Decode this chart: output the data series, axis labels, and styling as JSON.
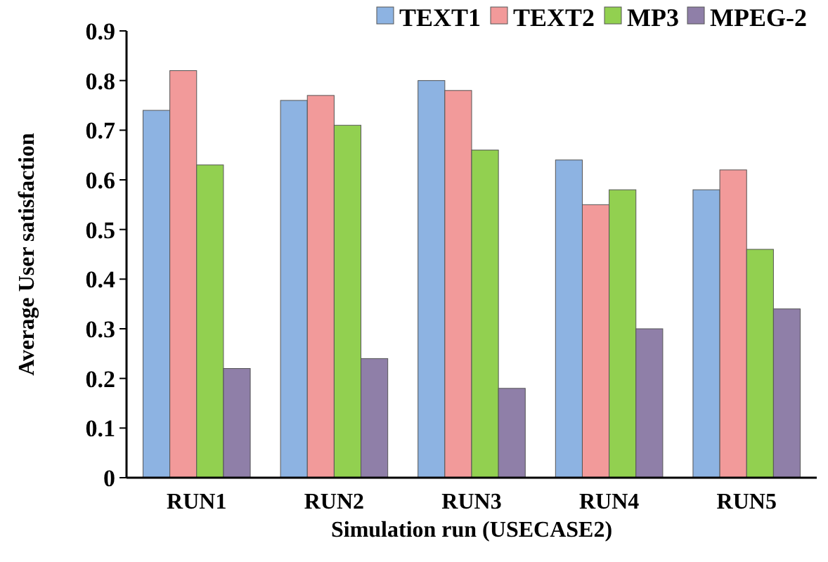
{
  "chart_data": {
    "type": "bar",
    "xlabel": "Simulation run (USECASE2)",
    "ylabel": "Average User satisfaction",
    "categories": [
      "RUN1",
      "RUN2",
      "RUN3",
      "RUN4",
      "RUN5"
    ],
    "series": [
      {
        "name": "TEXT1",
        "color": "#8db3e2",
        "values": [
          0.74,
          0.76,
          0.8,
          0.64,
          0.58
        ]
      },
      {
        "name": "TEXT2",
        "color": "#f29a9a",
        "values": [
          0.82,
          0.77,
          0.78,
          0.55,
          0.62
        ]
      },
      {
        "name": "MP3",
        "color": "#92d050",
        "values": [
          0.63,
          0.71,
          0.66,
          0.58,
          0.46
        ]
      },
      {
        "name": "MPEG-2",
        "color": "#8f7fa8",
        "values": [
          0.22,
          0.24,
          0.18,
          0.3,
          0.34
        ]
      }
    ],
    "ylim": [
      0,
      0.9
    ],
    "yticks": [
      {
        "value": 0,
        "label": "0"
      },
      {
        "value": 0.1,
        "label": "0.1"
      },
      {
        "value": 0.2,
        "label": "0.2"
      },
      {
        "value": 0.3,
        "label": "0.3"
      },
      {
        "value": 0.4,
        "label": "0.4"
      },
      {
        "value": 0.5,
        "label": "0.5"
      },
      {
        "value": 0.6,
        "label": "0.6"
      },
      {
        "value": 0.7,
        "label": "0.7"
      },
      {
        "value": 0.8,
        "label": "0.8"
      },
      {
        "value": 0.9,
        "label": "0.9"
      }
    ],
    "grid": false,
    "legend": "top right"
  }
}
